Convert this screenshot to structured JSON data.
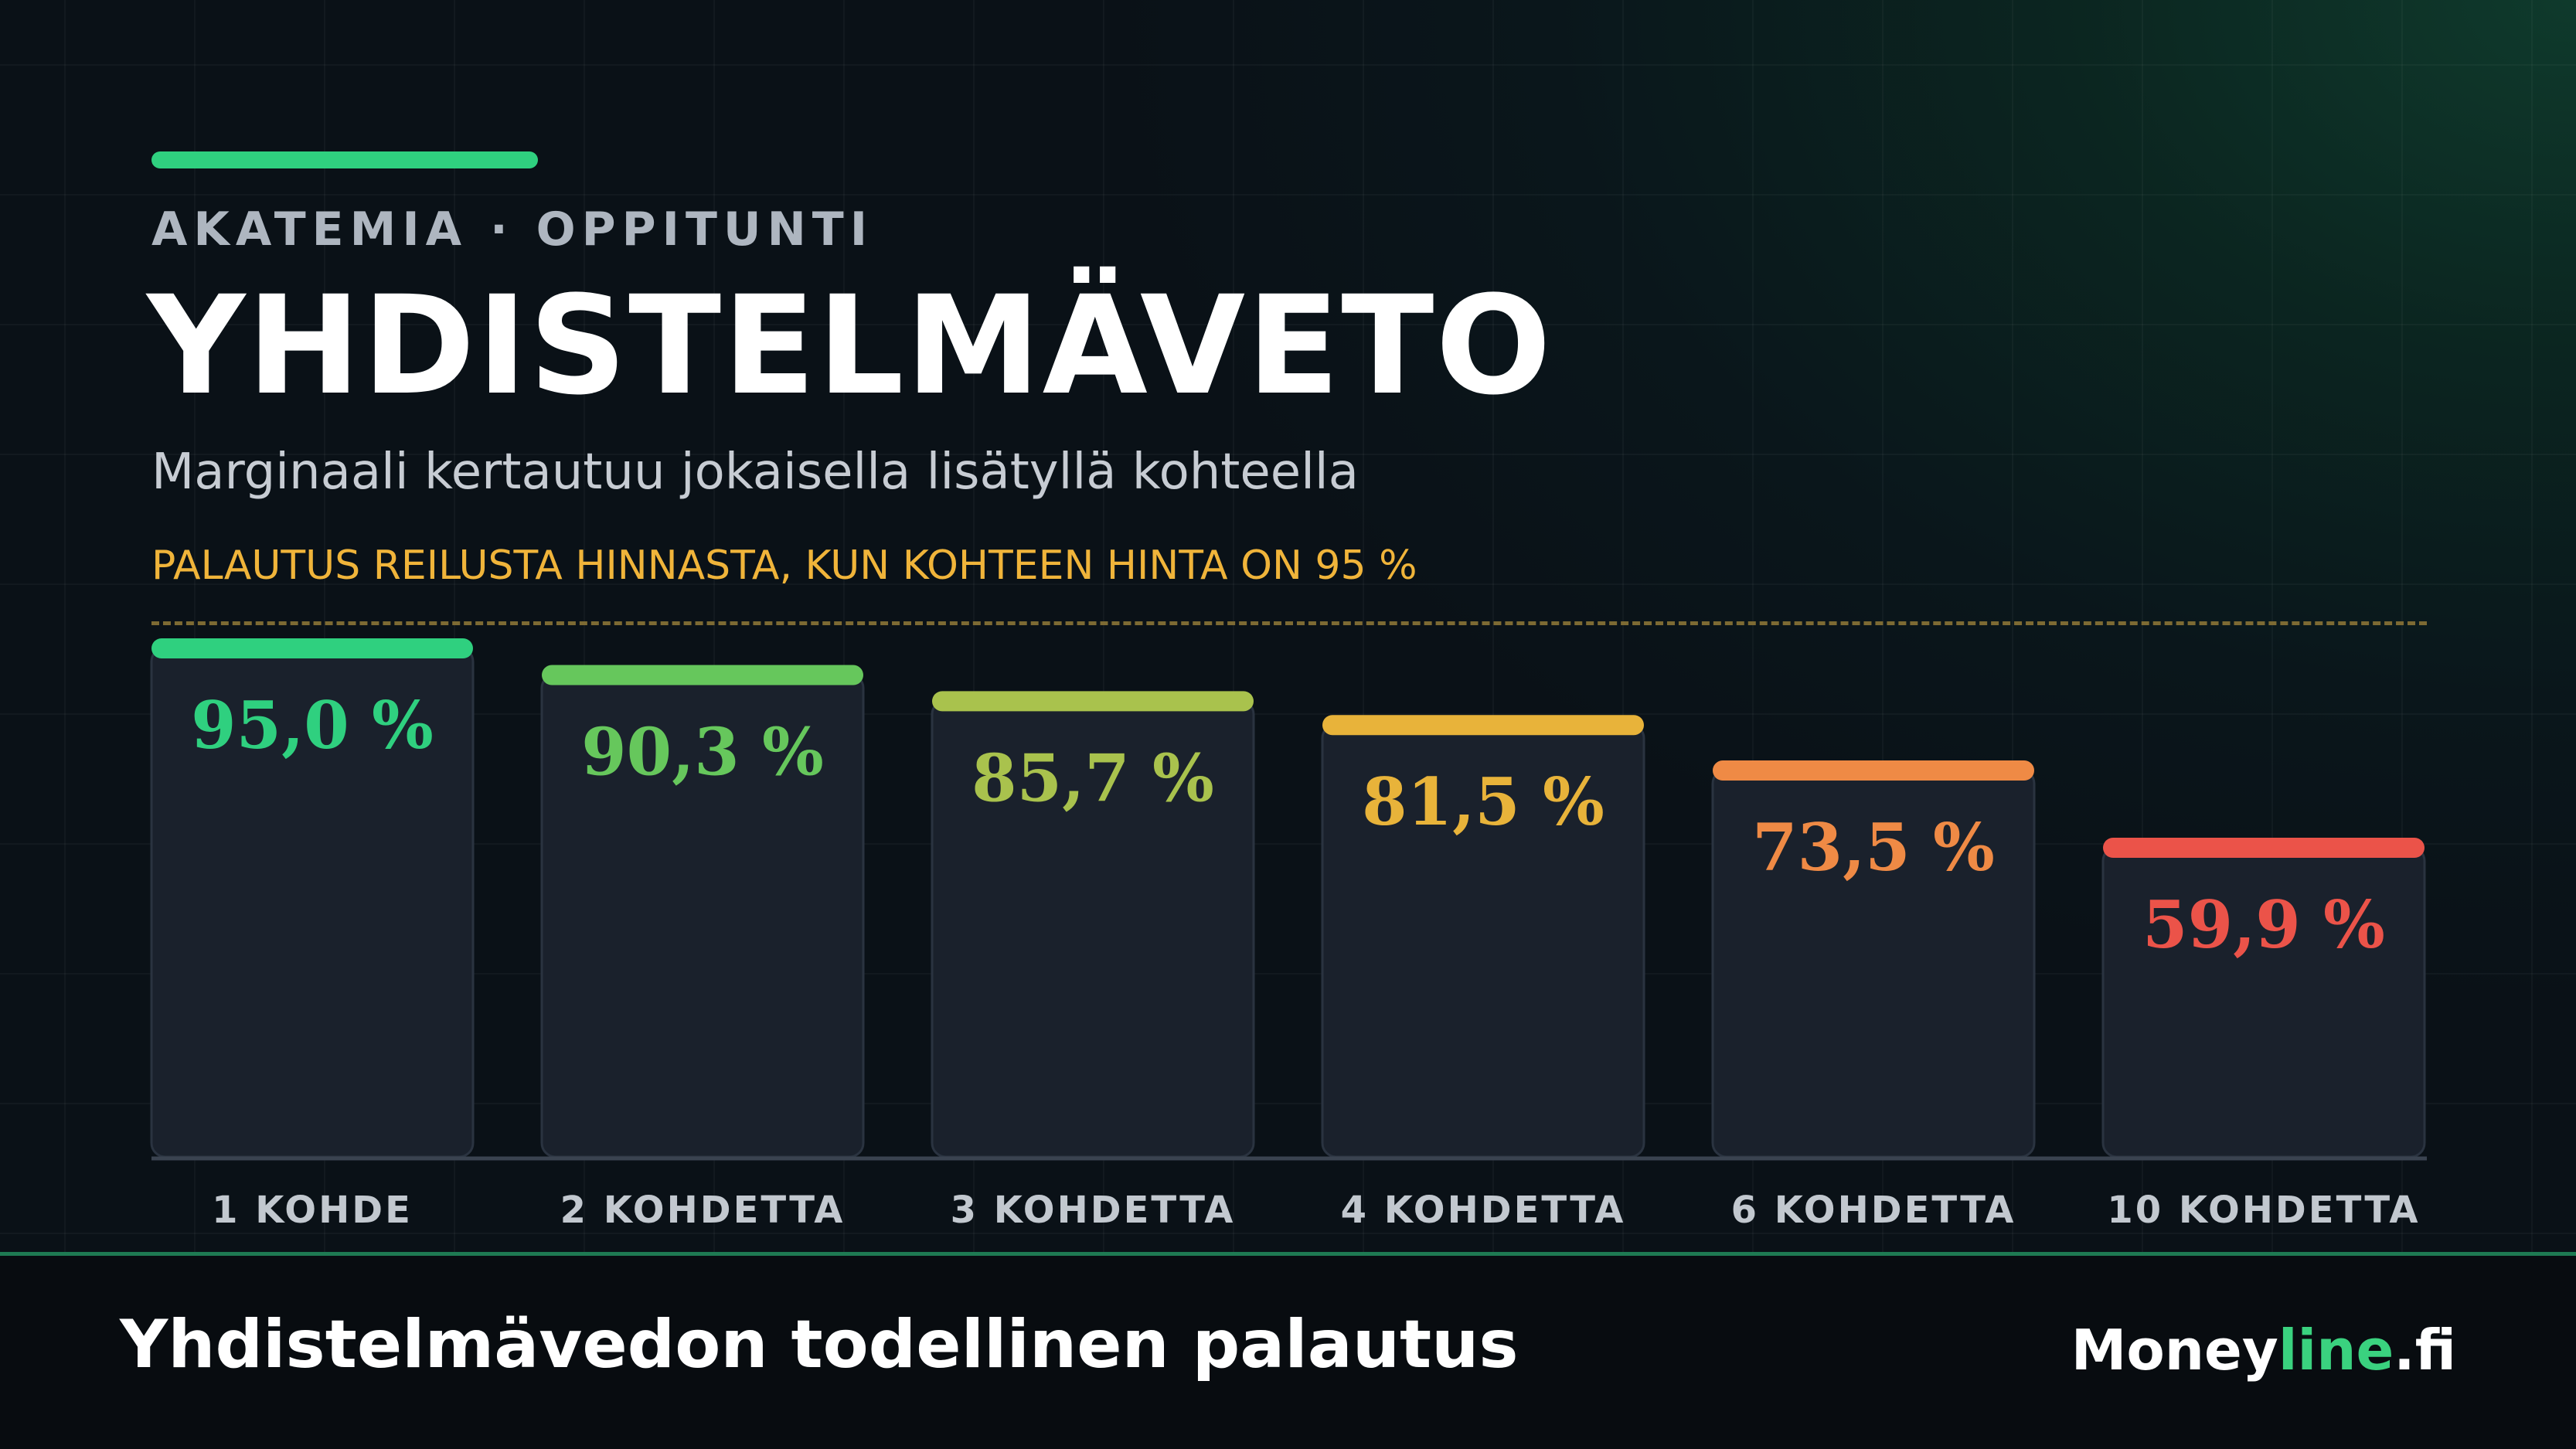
{
  "header": {
    "eyebrow": "AKATEMIA · OPPITUNTI",
    "title": "YHDISTELMÄVETO",
    "subtitle": "Marginaali kertautuu jokaisella lisätyllä kohteella",
    "note": "PALAUTUS REILUSTA HINNASTA, KUN KOHTEEN HINTA ON 95 %"
  },
  "chart_data": {
    "type": "bar",
    "categories": [
      "1 KOHDE",
      "2 KOHDETTA",
      "3 KOHDETTA",
      "4 KOHDETTA",
      "6 KOHDETTA",
      "10 KOHDETTA"
    ],
    "values": [
      95.0,
      90.3,
      85.7,
      81.5,
      73.5,
      59.9
    ],
    "value_labels": [
      "95,0 %",
      "90,3 %",
      "85,7 %",
      "81,5 %",
      "73,5 %",
      "59,9 %"
    ],
    "colors": [
      "#2fd07f",
      "#66c75c",
      "#a9c24d",
      "#e8b33a",
      "#ef8a45",
      "#eb5349"
    ],
    "ylim": [
      0,
      100
    ],
    "title": "",
    "xlabel": "",
    "ylabel": "",
    "grid": true
  },
  "footer": {
    "title": "Yhdistelmävedon todellinen palautus",
    "brand_part1": "Money",
    "brand_part2": "line",
    "brand_part3": ".fi"
  },
  "colors": {
    "accent": "#2fd07f",
    "note": "#f0b43a",
    "bar_fill": "#1a212c"
  }
}
